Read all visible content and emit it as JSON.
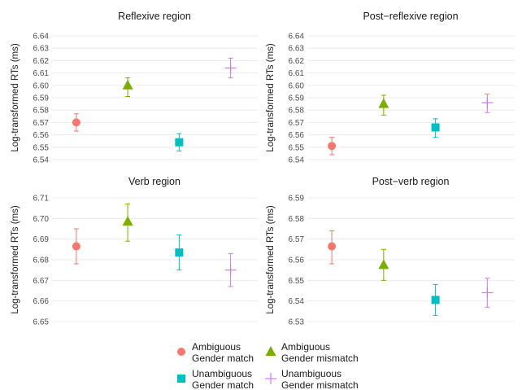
{
  "legend": {
    "items": [
      {
        "line1": "Ambiguous",
        "line2": "Gender match",
        "color": "#F8766D",
        "shape": "circle"
      },
      {
        "line1": "Ambiguous",
        "line2": "Gender mismatch",
        "color": "#7CAE00",
        "shape": "triangle"
      },
      {
        "line1": "Unambiguous",
        "line2": "Gender match",
        "color": "#00BFC4",
        "shape": "square"
      },
      {
        "line1": "Unambiguous",
        "line2": "Gender mismatch",
        "color": "#C77CFF",
        "shape": "plus"
      }
    ]
  },
  "chart_data": [
    {
      "type": "scatter",
      "title": "Reflexive region",
      "ylabel": "Log-transformed RTs (ms)",
      "ylim": [
        6.54,
        6.64
      ],
      "yticks": [
        "6.54",
        "6.55",
        "6.56",
        "6.57",
        "6.58",
        "6.59",
        "6.60",
        "6.61",
        "6.62",
        "6.63",
        "6.64"
      ],
      "series": [
        {
          "name": "Ambiguous Gender match",
          "value": 6.57,
          "ci": [
            6.563,
            6.577
          ]
        },
        {
          "name": "Ambiguous Gender mismatch",
          "value": 6.6,
          "ci": [
            6.591,
            6.606
          ]
        },
        {
          "name": "Unambiguous Gender match",
          "value": 6.554,
          "ci": [
            6.547,
            6.561
          ]
        },
        {
          "name": "Unambiguous Gender mismatch",
          "value": 6.614,
          "ci": [
            6.606,
            6.622
          ]
        }
      ]
    },
    {
      "type": "scatter",
      "title": "Post−reflexive region",
      "ylabel": "Log-transformed RTs (ms)",
      "ylim": [
        6.54,
        6.64
      ],
      "yticks": [
        "6.54",
        "6.55",
        "6.56",
        "6.57",
        "6.58",
        "6.59",
        "6.60",
        "6.61",
        "6.62",
        "6.63",
        "6.64"
      ],
      "series": [
        {
          "name": "Ambiguous Gender match",
          "value": 6.551,
          "ci": [
            6.544,
            6.558
          ]
        },
        {
          "name": "Ambiguous Gender mismatch",
          "value": 6.585,
          "ci": [
            6.576,
            6.592
          ]
        },
        {
          "name": "Unambiguous Gender match",
          "value": 6.566,
          "ci": [
            6.558,
            6.573
          ]
        },
        {
          "name": "Unambiguous Gender mismatch",
          "value": 6.586,
          "ci": [
            6.578,
            6.593
          ]
        }
      ]
    },
    {
      "type": "scatter",
      "title": "Verb region",
      "ylabel": "Log-transformed RTs (ms)",
      "ylim": [
        6.65,
        6.71
      ],
      "yticks": [
        "6.65",
        "6.66",
        "6.67",
        "6.68",
        "6.69",
        "6.70",
        "6.71"
      ],
      "series": [
        {
          "name": "Ambiguous Gender match",
          "value": 6.6865,
          "ci": [
            6.678,
            6.695
          ]
        },
        {
          "name": "Ambiguous Gender mismatch",
          "value": 6.6985,
          "ci": [
            6.689,
            6.707
          ]
        },
        {
          "name": "Unambiguous Gender match",
          "value": 6.6835,
          "ci": [
            6.675,
            6.692
          ]
        },
        {
          "name": "Unambiguous Gender mismatch",
          "value": 6.675,
          "ci": [
            6.667,
            6.683
          ]
        }
      ]
    },
    {
      "type": "scatter",
      "title": "Post−verb region",
      "ylabel": "Log-transformed RTs (ms)",
      "ylim": [
        6.53,
        6.59
      ],
      "yticks": [
        "6.53",
        "6.54",
        "6.55",
        "6.56",
        "6.57",
        "6.58",
        "6.59"
      ],
      "series": [
        {
          "name": "Ambiguous Gender match",
          "value": 6.5665,
          "ci": [
            6.558,
            6.574
          ]
        },
        {
          "name": "Ambiguous Gender mismatch",
          "value": 6.5575,
          "ci": [
            6.55,
            6.565
          ]
        },
        {
          "name": "Unambiguous Gender match",
          "value": 6.5405,
          "ci": [
            6.533,
            6.548
          ]
        },
        {
          "name": "Unambiguous Gender mismatch",
          "value": 6.544,
          "ci": [
            6.537,
            6.551
          ]
        }
      ]
    }
  ]
}
